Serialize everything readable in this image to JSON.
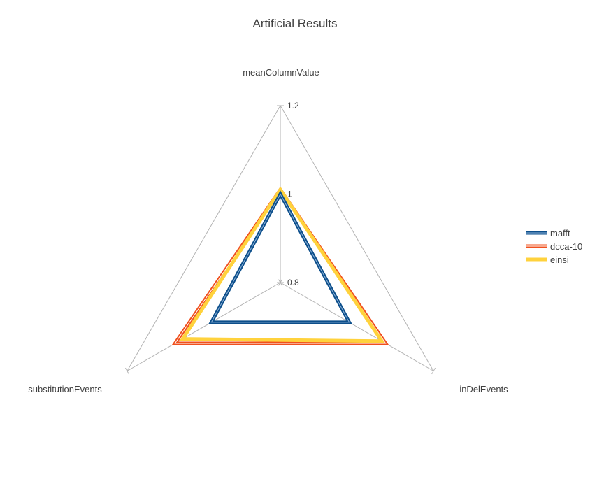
{
  "chart_data": {
    "type": "radar",
    "title": "Artificial Results",
    "axes": [
      "meanColumnValue",
      "inDelEvents",
      "substitutionEvents"
    ],
    "range": [
      0.8,
      1.2
    ],
    "ticks": [
      0.8,
      1,
      1.2
    ],
    "tick_labels": [
      "0.8",
      "1",
      "1.2"
    ],
    "legend_position": "right",
    "series": [
      {
        "name": "mafft",
        "values": [
          1.0,
          0.98,
          0.98
        ],
        "color": "#0d4f8b",
        "outline": "#8fb3d9",
        "style": "double"
      },
      {
        "name": "dcca-10",
        "values": [
          1.01,
          1.075,
          1.075
        ],
        "color": "#f0501e",
        "outline": "#ffffff",
        "style": "double"
      },
      {
        "name": "einsi",
        "values": [
          1.01,
          1.065,
          1.055
        ],
        "color": "#ffd23c",
        "outline": "",
        "style": "solid"
      }
    ]
  }
}
